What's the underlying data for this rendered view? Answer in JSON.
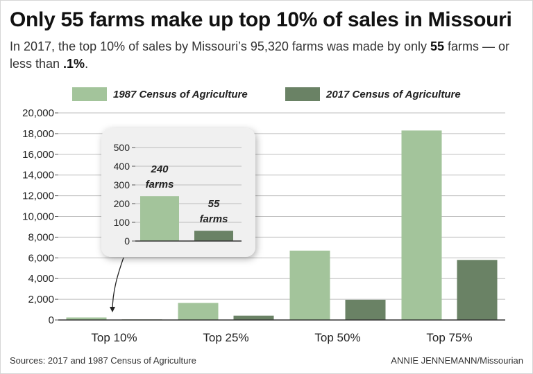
{
  "header": {
    "title": "Only 55 farms make up top 10% of sales in Missouri",
    "subtitle_prefix": "In 2017, the top 10% of sales by Missouri’s 95,320 farms was made by only ",
    "subtitle_num1": "55",
    "subtitle_middle": " farms — or less than ",
    "subtitle_num2": ".1%",
    "subtitle_suffix": "."
  },
  "colors": {
    "series_1987": "#a3c49b",
    "series_2017": "#6a8265",
    "grid": "#bdbdbd",
    "inset_bg": "#f0f0f0"
  },
  "footer": {
    "source_label": "Sources:",
    "source_text": " 2017 and 1987 Census of Agriculture",
    "credit_name": "ANNIE JENNEMANN",
    "credit_org": "/Missourian"
  },
  "chart_data": [
    {
      "type": "bar",
      "categories": [
        "Top 10%",
        "Top 25%",
        "Top 50%",
        "Top 75%"
      ],
      "series": [
        {
          "name": "1987 Census of Agriculture",
          "values": [
            240,
            1650,
            6700,
            18300
          ]
        },
        {
          "name": "2017 Census of Agriculture",
          "values": [
            55,
            420,
            1950,
            5800
          ]
        }
      ],
      "ylim": [
        0,
        20000
      ],
      "yticks": [
        "0",
        "2,000",
        "4,000",
        "6,000",
        "8,000",
        "10,000",
        "12,000",
        "14,000",
        "16,000",
        "18,000",
        "20,000"
      ],
      "legend": "top",
      "grid": true
    },
    {
      "type": "bar",
      "note": "inset zoom of the Top 10% category",
      "categories": [
        "Top 10%"
      ],
      "series": [
        {
          "name": "1987 Census of Agriculture",
          "values": [
            240
          ]
        },
        {
          "name": "2017 Census of Agriculture",
          "values": [
            55
          ]
        }
      ],
      "ylim": [
        0,
        500
      ],
      "yticks": [
        "0",
        "100",
        "200",
        "300",
        "400",
        "500"
      ],
      "annotations": [
        {
          "lines": [
            "240",
            "farms"
          ]
        },
        {
          "lines": [
            "55",
            "farms"
          ]
        }
      ],
      "grid": true
    }
  ]
}
